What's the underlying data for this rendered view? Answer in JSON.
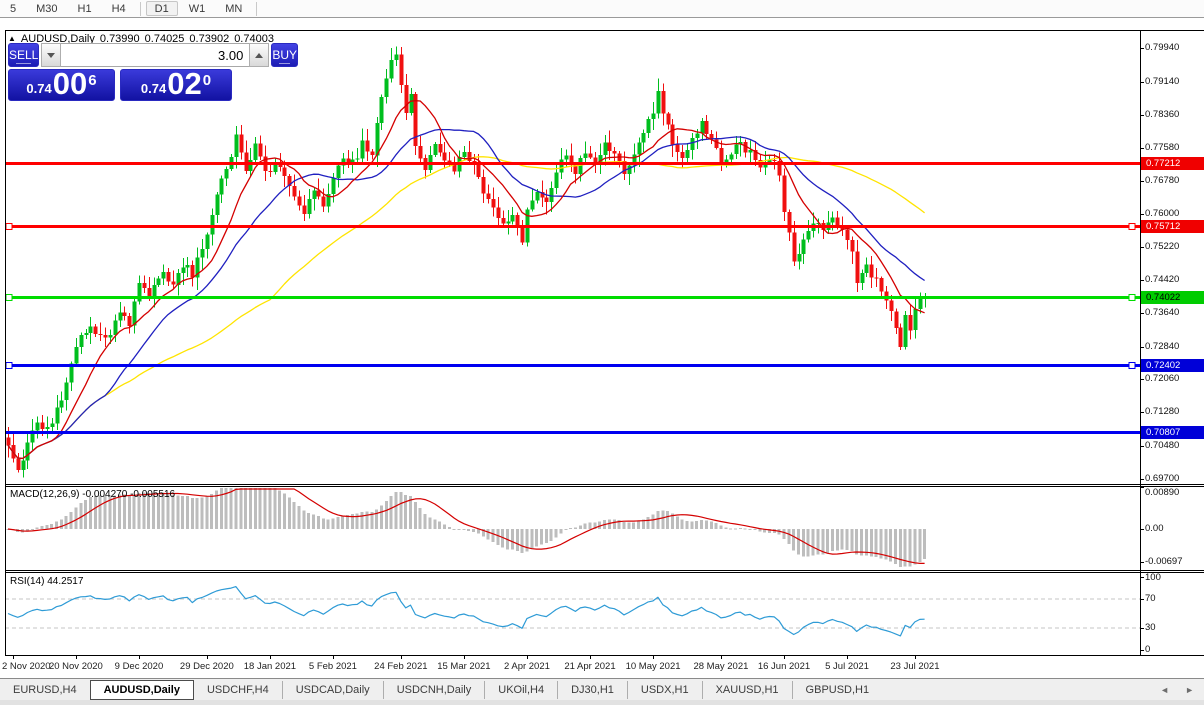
{
  "toolbar": {
    "items": [
      {
        "label": "5",
        "active": false
      },
      {
        "label": "M30",
        "active": false
      },
      {
        "label": "H1",
        "active": false
      },
      {
        "label": "H4",
        "active": false
      },
      {
        "label": "D1",
        "active": true
      },
      {
        "label": "W1",
        "active": false
      },
      {
        "label": "MN",
        "active": false
      }
    ]
  },
  "chart": {
    "title": {
      "symbol": "AUDUSD,Daily",
      "open": "0.73990",
      "high": "0.74025",
      "low": "0.73902",
      "close": "0.74003",
      "collapse_icon": "▲"
    },
    "trade_panel": {
      "sell_label": "SELL",
      "buy_label": "BUY",
      "volume": "3.00",
      "sell_price_main": "0.74",
      "sell_price_big": "00",
      "sell_price_sup": "6",
      "buy_price_main": "0.74",
      "buy_price_big": "02",
      "buy_price_sup": "0"
    },
    "price_axis_labels": [
      "0.79940",
      "0.79140",
      "0.78360",
      "0.77580",
      "0.76780",
      "0.76000",
      "0.75220",
      "0.74420",
      "0.73640",
      "0.72840",
      "0.72060",
      "0.71280",
      "0.70480",
      "0.69700"
    ],
    "levels": [
      {
        "value": 0.77212,
        "label": "0.77212",
        "line": "#FF0000",
        "tag_bg": "#F00000",
        "tag_fg": "#FFFFFF",
        "handles": false
      },
      {
        "value": 0.75712,
        "label": "0.75712",
        "line": "#FF0000",
        "tag_bg": "#F00000",
        "tag_fg": "#FFFFFF",
        "handles": true
      },
      {
        "value": 0.74022,
        "label": "0.74022",
        "line": "#00DC00",
        "tag_bg": "#00CC00",
        "tag_fg": "#000000",
        "handles": true
      },
      {
        "value": 0.72402,
        "label": "0.72402",
        "line": "#0000F0",
        "tag_bg": "#0000D8",
        "tag_fg": "#FFFFFF",
        "handles": true
      },
      {
        "value": 0.70807,
        "label": "0.70807",
        "line": "#0000F0",
        "tag_bg": "#0000D8",
        "tag_fg": "#FFFFFF",
        "handles": false
      }
    ],
    "time_axis": [
      {
        "label": "2 Nov 2020",
        "i": 1
      },
      {
        "label": "20 Nov 2020",
        "i": 14
      },
      {
        "label": "9 Dec 2020",
        "i": 27
      },
      {
        "label": "29 Dec 2020",
        "i": 41
      },
      {
        "label": "18 Jan 2021",
        "i": 54
      },
      {
        "label": "5 Feb 2021",
        "i": 67
      },
      {
        "label": "24 Feb 2021",
        "i": 81
      },
      {
        "label": "15 Mar 2021",
        "i": 94
      },
      {
        "label": "2 Apr 2021",
        "i": 107
      },
      {
        "label": "21 Apr 2021",
        "i": 120
      },
      {
        "label": "10 May 2021",
        "i": 133
      },
      {
        "label": "28 May 2021",
        "i": 147
      },
      {
        "label": "16 Jun 2021",
        "i": 160
      },
      {
        "label": "5 Jul 2021",
        "i": 173
      },
      {
        "label": "23 Jul 2021",
        "i": 187
      }
    ],
    "colors": {
      "bull": "#00BE1E",
      "bear": "#F01010",
      "ma_fast": "#D40000",
      "ma_mid": "#2020C0",
      "ma_slow": "#FFE400",
      "macd_hist": "#BDBDBD",
      "macd_signal": "#D40000",
      "rsi_line": "#2E9BD6",
      "grid_dash": "#C4C4C4"
    },
    "chart_data": {
      "type": "candlestick",
      "symbol": "AUDUSD",
      "timeframe": "Daily",
      "visible_range": {
        "start": "2 Nov 2020",
        "end": "late Jul 2021"
      },
      "price_range": [
        0.697,
        0.7994
      ],
      "last_ohlc": {
        "open": 0.7399,
        "high": 0.74025,
        "low": 0.73902,
        "close": 0.74003
      },
      "close_path_anchors": [
        [
          0,
          0.7045
        ],
        [
          2,
          0.6992
        ],
        [
          4,
          0.7045
        ],
        [
          6,
          0.711
        ],
        [
          8,
          0.7085
        ],
        [
          11,
          0.7165
        ],
        [
          14,
          0.729
        ],
        [
          17,
          0.7325
        ],
        [
          20,
          0.73
        ],
        [
          23,
          0.7365
        ],
        [
          25,
          0.734
        ],
        [
          27,
          0.743
        ],
        [
          29,
          0.7405
        ],
        [
          32,
          0.7455
        ],
        [
          34,
          0.7425
        ],
        [
          36,
          0.748
        ],
        [
          38,
          0.7455
        ],
        [
          41,
          0.756
        ],
        [
          43,
          0.765
        ],
        [
          45,
          0.7705
        ],
        [
          47,
          0.778
        ],
        [
          49,
          0.7705
        ],
        [
          51,
          0.776
        ],
        [
          53,
          0.7695
        ],
        [
          55,
          0.7725
        ],
        [
          57,
          0.769
        ],
        [
          59,
          0.764
        ],
        [
          61,
          0.76
        ],
        [
          63,
          0.7655
        ],
        [
          65,
          0.762
        ],
        [
          67,
          0.768
        ],
        [
          69,
          0.774
        ],
        [
          71,
          0.772
        ],
        [
          73,
          0.7765
        ],
        [
          75,
          0.7745
        ],
        [
          77,
          0.787
        ],
        [
          79,
          0.7965
        ],
        [
          80,
          0.799
        ],
        [
          81,
          0.7905
        ],
        [
          82,
          0.7845
        ],
        [
          83,
          0.7875
        ],
        [
          84,
          0.777
        ],
        [
          86,
          0.7715
        ],
        [
          88,
          0.7775
        ],
        [
          90,
          0.7735
        ],
        [
          92,
          0.7695
        ],
        [
          94,
          0.7755
        ],
        [
          96,
          0.7715
        ],
        [
          98,
          0.7655
        ],
        [
          100,
          0.7605
        ],
        [
          102,
          0.757
        ],
        [
          104,
          0.7605
        ],
        [
          106,
          0.754
        ],
        [
          107,
          0.7615
        ],
        [
          109,
          0.7655
        ],
        [
          111,
          0.7625
        ],
        [
          113,
          0.7705
        ],
        [
          115,
          0.7735
        ],
        [
          117,
          0.7705
        ],
        [
          119,
          0.7748
        ],
        [
          121,
          0.7722
        ],
        [
          123,
          0.7772
        ],
        [
          125,
          0.7742
        ],
        [
          127,
          0.77
        ],
        [
          129,
          0.7745
        ],
        [
          131,
          0.78
        ],
        [
          133,
          0.7835
        ],
        [
          134,
          0.7888
        ],
        [
          135,
          0.784
        ],
        [
          137,
          0.7775
        ],
        [
          139,
          0.7735
        ],
        [
          141,
          0.7785
        ],
        [
          143,
          0.7812
        ],
        [
          145,
          0.7782
        ],
        [
          147,
          0.7712
        ],
        [
          149,
          0.7752
        ],
        [
          151,
          0.7768
        ],
        [
          153,
          0.7742
        ],
        [
          155,
          0.7702
        ],
        [
          157,
          0.7732
        ],
        [
          159,
          0.77
        ],
        [
          160,
          0.7612
        ],
        [
          161,
          0.756
        ],
        [
          162,
          0.7482
        ],
        [
          164,
          0.7532
        ],
        [
          166,
          0.7582
        ],
        [
          168,
          0.7562
        ],
        [
          170,
          0.7592
        ],
        [
          172,
          0.7552
        ],
        [
          174,
          0.7512
        ],
        [
          175,
          0.7442
        ],
        [
          177,
          0.7472
        ],
        [
          179,
          0.7442
        ],
        [
          181,
          0.7392
        ],
        [
          183,
          0.7335
        ],
        [
          184,
          0.7292
        ],
        [
          185,
          0.7362
        ],
        [
          186,
          0.733
        ],
        [
          187,
          0.7372
        ],
        [
          188,
          0.7388
        ],
        [
          189,
          0.74
        ]
      ]
    }
  },
  "macd": {
    "label": "MACD(12,26,9)",
    "value": "-0.004270",
    "signal": "-0.005516",
    "axis": [
      {
        "label": "0.00890",
        "v": 0.0089
      },
      {
        "label": "0.00",
        "v": 0
      },
      {
        "label": "-0.00697",
        "v": -0.00697
      }
    ]
  },
  "rsi": {
    "label": "RSI(14)",
    "value": "44.2517",
    "axis": [
      {
        "label": "100",
        "v": 100
      },
      {
        "label": "70",
        "v": 70
      },
      {
        "label": "30",
        "v": 30
      },
      {
        "label": "0",
        "v": 0
      }
    ],
    "levels": [
      70,
      30
    ]
  },
  "tabs": {
    "items": [
      {
        "label": "EURUSD,H4",
        "active": false
      },
      {
        "label": "AUDUSD,Daily",
        "active": true
      },
      {
        "label": "USDCHF,H4",
        "active": false
      },
      {
        "label": "USDCAD,Daily",
        "active": false
      },
      {
        "label": "USDCNH,Daily",
        "active": false
      },
      {
        "label": "UKOil,H4",
        "active": false
      },
      {
        "label": "DJ30,H1",
        "active": false
      },
      {
        "label": "USDX,H1",
        "active": false
      },
      {
        "label": "XAUUSD,H1",
        "active": false
      },
      {
        "label": "GBPUSD,H1",
        "active": false
      }
    ],
    "scroll_left_icon": "◄",
    "scroll_right_icon": "►"
  }
}
